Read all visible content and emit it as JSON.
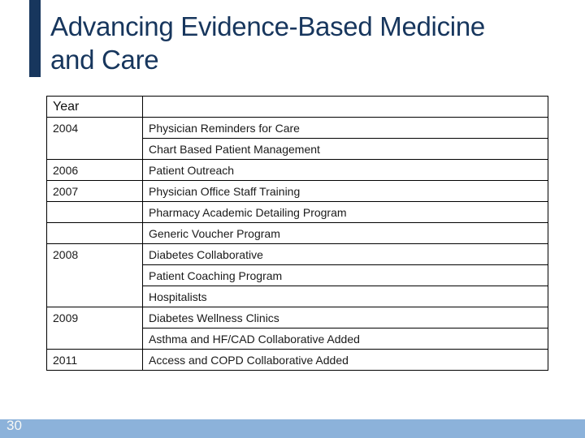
{
  "slide": {
    "title_line1": "Advancing Evidence-Based Medicine",
    "title_line2": "and Care",
    "page_number": "30"
  },
  "colors": {
    "title_navy": "#17365d",
    "accent_bar_navy": "#17365d",
    "footer_blue": "#8cb2da",
    "table_border_black": "#000000",
    "table_text": "#1a1a1a",
    "page_number_white": "#f7f8f5"
  },
  "table": {
    "header": {
      "year": "Year",
      "program": ""
    },
    "rows": [
      {
        "year": "2004",
        "year_rowspan": 2,
        "program": "Physician Reminders for Care"
      },
      {
        "program": "Chart Based Patient Management"
      },
      {
        "year": "2006",
        "year_rowspan": 1,
        "program": "Patient Outreach"
      },
      {
        "year": "2007",
        "year_rowspan": 1,
        "program": "Physician Office Staff Training"
      },
      {
        "year": "",
        "year_rowspan": 1,
        "program": "Pharmacy Academic Detailing Program"
      },
      {
        "year": "",
        "year_rowspan": 1,
        "program": "Generic Voucher Program"
      },
      {
        "year": "2008",
        "year_rowspan": 3,
        "program": "Diabetes Collaborative"
      },
      {
        "program": "Patient Coaching Program"
      },
      {
        "program": "Hospitalists"
      },
      {
        "year": "2009",
        "year_rowspan": 2,
        "program": "Diabetes Wellness Clinics"
      },
      {
        "program": "Asthma and HF/CAD Collaborative Added"
      },
      {
        "year": "2011",
        "year_rowspan": 1,
        "program": "Access and COPD Collaborative Added"
      }
    ]
  }
}
